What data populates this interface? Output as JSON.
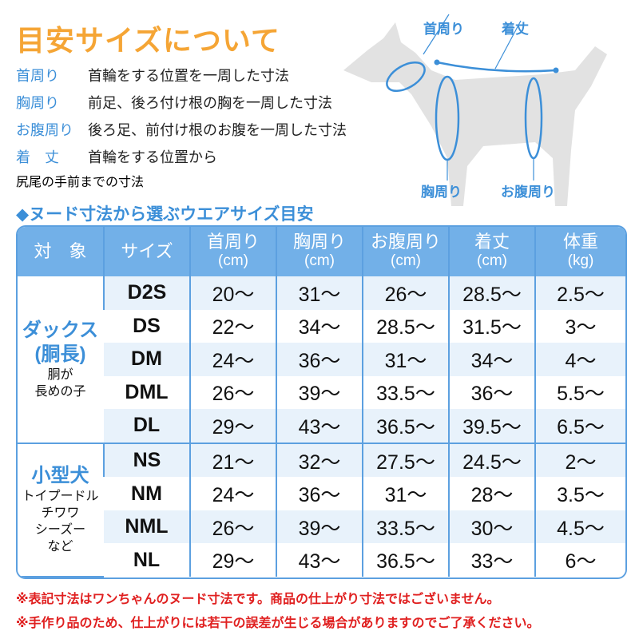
{
  "title": "目安サイズについて",
  "definitions": [
    {
      "term": "首周り",
      "desc": "首輪をする位置を一周した寸法"
    },
    {
      "term": "胸周り",
      "desc": "前足、後ろ付け根の胸を一周した寸法"
    },
    {
      "term": "お腹周り",
      "desc": "後ろ足、前付け根のお腹を一周した寸法"
    },
    {
      "term": "着　丈",
      "desc": "首輪をする位置から",
      "desc2": "尻尾の手前までの寸法"
    }
  ],
  "diagram_labels": {
    "neck": "首周り",
    "length": "着丈",
    "chest": "胸周り",
    "belly": "お腹周り"
  },
  "subtitle": "◆ヌード寸法から選ぶウエアサイズ目安",
  "colors": {
    "accent_orange": "#f5a535",
    "accent_blue": "#3c8fd8",
    "header_bg": "#72b0e8",
    "stripe": "#e8f2fb",
    "note_red": "#e02020"
  },
  "table": {
    "headers": [
      {
        "label": "対　象"
      },
      {
        "label": "サイズ"
      },
      {
        "label": "首周り",
        "unit": "(cm)"
      },
      {
        "label": "胸周り",
        "unit": "(cm)"
      },
      {
        "label": "お腹周り",
        "unit": "(cm)"
      },
      {
        "label": "着丈",
        "unit": "(cm)"
      },
      {
        "label": "体重",
        "unit": "(kg)"
      }
    ],
    "groups": [
      {
        "name": "ダックス",
        "name2": "(胴長)",
        "sub": [
          "胴が",
          "長めの子"
        ],
        "rows": [
          [
            "D2S",
            "20～",
            "31～",
            "26～",
            "28.5～",
            "2.5～"
          ],
          [
            "DS",
            "22～",
            "34～",
            "28.5～",
            "31.5～",
            "3～"
          ],
          [
            "DM",
            "24～",
            "36～",
            "31～",
            "34～",
            "4～"
          ],
          [
            "DML",
            "26～",
            "39～",
            "33.5～",
            "36～",
            "5.5～"
          ],
          [
            "DL",
            "29～",
            "43～",
            "36.5～",
            "39.5～",
            "6.5～"
          ]
        ]
      },
      {
        "name": "小型犬",
        "name2": "",
        "sub": [
          "トイプードル",
          "チワワ",
          "シーズー",
          "など"
        ],
        "rows": [
          [
            "NS",
            "21～",
            "32～",
            "27.5～",
            "24.5～",
            "2～"
          ],
          [
            "NM",
            "24～",
            "36～",
            "31～",
            "28～",
            "3.5～"
          ],
          [
            "NML",
            "26～",
            "39～",
            "33.5～",
            "30～",
            "4.5～"
          ],
          [
            "NL",
            "29～",
            "43～",
            "36.5～",
            "33～",
            "6～"
          ]
        ]
      }
    ]
  },
  "notes": [
    "※表記寸法はワンちゃんのヌード寸法です。商品の仕上がり寸法ではございません。",
    "※手作り品のため、仕上がりには若干の誤差が生じる場合がありますのでご了承ください。"
  ]
}
